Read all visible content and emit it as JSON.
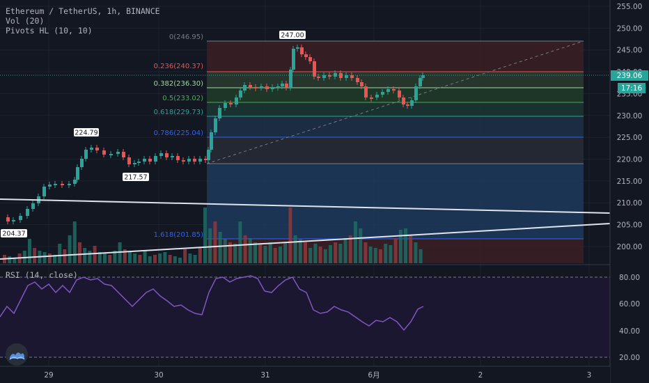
{
  "header": {
    "title": "Ethereum / TetherUS, 1h, BINANCE",
    "volume": "Vol (20)",
    "pivots": "Pivots HL (10, 10)"
  },
  "price_axis": {
    "ticks": [
      "255.00",
      "250.00",
      "245.00",
      "240.00",
      "235.00",
      "230.00",
      "225.00",
      "220.00",
      "215.00",
      "210.00",
      "205.00",
      "200.00"
    ],
    "current_price": "239.06",
    "countdown": "17:16"
  },
  "rsi": {
    "label": "RSI (14, close)",
    "ticks": [
      "80.00",
      "60.00",
      "40.00",
      "20.00"
    ]
  },
  "time_axis": [
    "29",
    "30",
    "31",
    "6月",
    "2",
    "3"
  ],
  "fibonacci": [
    {
      "label": "0(246.95)",
      "color": "#787b86"
    },
    {
      "label": "0.236(240.37)",
      "color": "#ef5350"
    },
    {
      "label": "0.382(236.30)",
      "color": "#a5d6a7"
    },
    {
      "label": "0.5(233.02)",
      "color": "#4caf50"
    },
    {
      "label": "0.618(229.73)",
      "color": "#26a69a"
    },
    {
      "label": "0.786(225.04)",
      "color": "#2962ff"
    },
    {
      "label": "1.618(201.85)",
      "color": "#2962ff"
    }
  ],
  "pivots": [
    "224.79",
    "217.57",
    "204.37",
    "247.00"
  ],
  "colors": {
    "up": "#26a69a",
    "down": "#ef5350",
    "rsi": "#7e57c2",
    "background": "#131722"
  }
}
